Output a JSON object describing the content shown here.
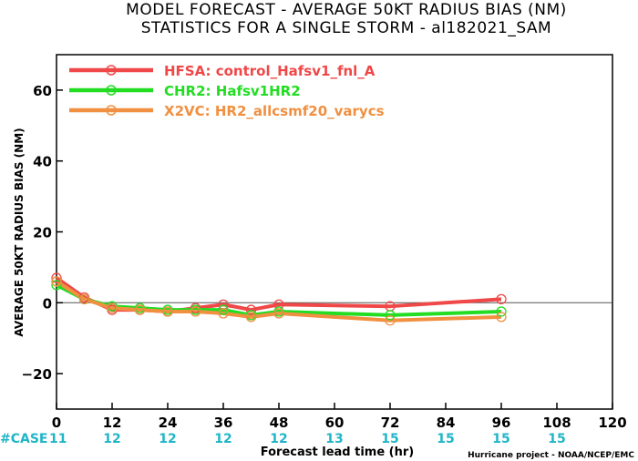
{
  "chart_data": {
    "type": "line",
    "title_line1": "MODEL FORECAST - AVERAGE 50KT RADIUS BIAS (NM)",
    "title_line2": "STATISTICS FOR A SINGLE STORM - al182021_SAM",
    "xlabel": "Forecast lead time (hr)",
    "ylabel": "AVERAGE 50KT RADIUS BIAS (NM)",
    "xlim": [
      0,
      120
    ],
    "ylim": [
      -30,
      70
    ],
    "xticks": [
      0,
      12,
      24,
      36,
      48,
      60,
      72,
      84,
      96,
      108,
      120
    ],
    "yticks": [
      -20,
      0,
      20,
      40,
      60
    ],
    "case_label": "#CASE",
    "case_counts": [
      {
        "x": 0,
        "n": "11"
      },
      {
        "x": 12,
        "n": "12"
      },
      {
        "x": 24,
        "n": "12"
      },
      {
        "x": 36,
        "n": "12"
      },
      {
        "x": 48,
        "n": "12"
      },
      {
        "x": 60,
        "n": "13"
      },
      {
        "x": 72,
        "n": "15"
      },
      {
        "x": 84,
        "n": "15"
      },
      {
        "x": 96,
        "n": "15"
      },
      {
        "x": 108,
        "n": "15"
      }
    ],
    "legend_position": "top-left",
    "series": [
      {
        "name": "HFSA: control_Hafsv1_fnl_A",
        "color": "#f04848",
        "points": [
          [
            0,
            7
          ],
          [
            6,
            1.5
          ],
          [
            12,
            -2
          ],
          [
            18,
            -2
          ],
          [
            24,
            -2.5
          ],
          [
            30,
            -1.5
          ],
          [
            36,
            -0.5
          ],
          [
            42,
            -2
          ],
          [
            48,
            -0.5
          ],
          [
            72,
            -1
          ],
          [
            96,
            1
          ]
        ]
      },
      {
        "name": "CHR2: Hafsv1HR2",
        "color": "#22dd22",
        "points": [
          [
            0,
            5
          ],
          [
            6,
            1
          ],
          [
            12,
            -1
          ],
          [
            18,
            -1.5
          ],
          [
            24,
            -2
          ],
          [
            30,
            -2
          ],
          [
            36,
            -2
          ],
          [
            42,
            -3.5
          ],
          [
            48,
            -2.5
          ],
          [
            72,
            -3.5
          ],
          [
            96,
            -2.5
          ]
        ]
      },
      {
        "name": "X2VC: HR2_allcsmf20_varycs",
        "color": "#f09040",
        "points": [
          [
            0,
            6
          ],
          [
            6,
            1
          ],
          [
            12,
            -1.5
          ],
          [
            18,
            -2
          ],
          [
            24,
            -2.5
          ],
          [
            30,
            -2.5
          ],
          [
            36,
            -3
          ],
          [
            42,
            -4
          ],
          [
            48,
            -3
          ],
          [
            72,
            -5
          ],
          [
            96,
            -4
          ]
        ]
      }
    ]
  },
  "credit": "Hurricane project - NOAA/NCEP/EMC"
}
